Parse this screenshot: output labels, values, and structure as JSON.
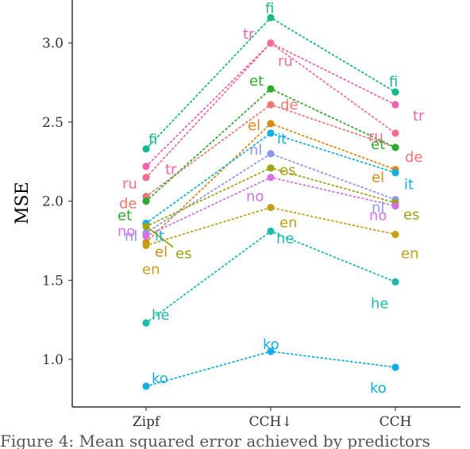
{
  "caption": "Figure 4: Mean squared error achieved by predictors",
  "chart_data": {
    "type": "line",
    "title": "",
    "xlabel": "",
    "ylabel": "MSE",
    "categories": [
      "Zipf",
      "CCH↓",
      "CCH"
    ],
    "ylim": [
      0.8,
      3.2
    ],
    "yticks": [
      "1.0",
      "1.5",
      "2.0",
      "2.5",
      "3.0"
    ],
    "grid": false,
    "legend": "none",
    "line_style": "dotted",
    "series": [
      {
        "name": "fi",
        "color": "#18b88a",
        "values": [
          2.33,
          3.16,
          2.69
        ]
      },
      {
        "name": "tr",
        "color": "#ee62ad",
        "values": [
          2.22,
          3.0,
          2.61
        ]
      },
      {
        "name": "ru",
        "color": "#f36d90",
        "values": [
          2.15,
          3.0,
          2.43
        ]
      },
      {
        "name": "de",
        "color": "#ef7771",
        "values": [
          2.03,
          2.61,
          2.34
        ]
      },
      {
        "name": "et",
        "color": "#2eab2e",
        "values": [
          2.0,
          2.71,
          2.34
        ]
      },
      {
        "name": "el",
        "color": "#d98a17",
        "values": [
          1.74,
          2.49,
          2.2
        ]
      },
      {
        "name": "nl",
        "color": "#8d97eb",
        "values": [
          1.8,
          2.3,
          2.01
        ]
      },
      {
        "name": "it",
        "color": "#16aedb",
        "values": [
          1.86,
          2.43,
          2.18
        ]
      },
      {
        "name": "es",
        "color": "#a1a114",
        "values": [
          1.84,
          2.21,
          1.99
        ]
      },
      {
        "name": "no",
        "color": "#d470e8",
        "values": [
          1.78,
          2.15,
          1.97
        ]
      },
      {
        "name": "en",
        "color": "#c2a117",
        "values": [
          1.72,
          1.96,
          1.79
        ]
      },
      {
        "name": "he",
        "color": "#1ebbaa",
        "values": [
          1.23,
          1.81,
          1.49
        ]
      },
      {
        "name": "ko",
        "color": "#14aee6",
        "values": [
          0.83,
          1.05,
          0.95
        ]
      }
    ]
  }
}
